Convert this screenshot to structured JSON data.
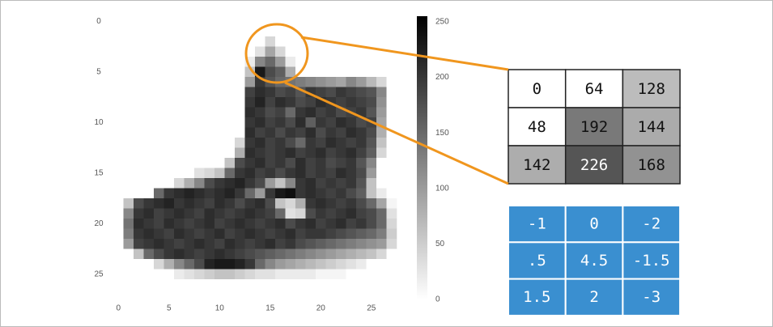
{
  "chart_data": {
    "type": "heatmap",
    "colormap": "gray_r",
    "xlim": [
      -0.5,
      27.5
    ],
    "ylim": [
      27.5,
      -0.5
    ],
    "zlim": [
      0,
      255
    ],
    "xticks": [
      0,
      5,
      10,
      15,
      20,
      25
    ],
    "yticks": [
      0,
      5,
      10,
      15,
      20,
      25
    ],
    "colorbar_ticks": [
      0,
      50,
      100,
      150,
      200,
      250
    ],
    "z": [
      [
        0,
        0,
        0,
        0,
        0,
        0,
        0,
        0,
        0,
        0,
        0,
        0,
        0,
        0,
        0,
        0,
        0,
        0,
        0,
        0,
        0,
        0,
        0,
        0,
        0,
        0,
        0,
        0
      ],
      [
        0,
        0,
        0,
        0,
        0,
        0,
        0,
        0,
        0,
        0,
        0,
        0,
        0,
        0,
        0,
        0,
        0,
        0,
        0,
        0,
        0,
        0,
        0,
        0,
        0,
        0,
        0,
        0
      ],
      [
        0,
        0,
        0,
        0,
        0,
        0,
        0,
        0,
        0,
        0,
        0,
        0,
        0,
        0,
        0,
        40,
        0,
        0,
        0,
        0,
        0,
        0,
        0,
        0,
        0,
        0,
        0,
        0
      ],
      [
        0,
        0,
        0,
        0,
        0,
        0,
        0,
        0,
        0,
        0,
        0,
        0,
        0,
        0,
        30,
        90,
        40,
        0,
        0,
        0,
        0,
        0,
        0,
        0,
        0,
        0,
        0,
        0
      ],
      [
        0,
        0,
        0,
        0,
        0,
        0,
        0,
        0,
        0,
        0,
        0,
        0,
        0,
        20,
        120,
        150,
        100,
        20,
        0,
        0,
        0,
        0,
        0,
        0,
        0,
        0,
        0,
        0
      ],
      [
        0,
        0,
        0,
        0,
        0,
        0,
        0,
        0,
        0,
        0,
        0,
        0,
        0,
        60,
        230,
        180,
        160,
        80,
        0,
        0,
        0,
        0,
        0,
        0,
        0,
        0,
        0,
        0
      ],
      [
        0,
        0,
        0,
        0,
        0,
        0,
        0,
        0,
        0,
        0,
        0,
        0,
        0,
        100,
        200,
        170,
        150,
        140,
        130,
        120,
        110,
        100,
        90,
        120,
        100,
        70,
        40,
        0
      ],
      [
        0,
        0,
        0,
        0,
        0,
        0,
        0,
        0,
        0,
        0,
        0,
        0,
        0,
        190,
        210,
        200,
        180,
        190,
        170,
        200,
        190,
        180,
        200,
        190,
        180,
        170,
        120,
        0
      ],
      [
        0,
        0,
        0,
        0,
        0,
        0,
        0,
        0,
        0,
        0,
        0,
        0,
        0,
        200,
        220,
        190,
        210,
        200,
        180,
        190,
        210,
        200,
        190,
        200,
        190,
        180,
        110,
        0
      ],
      [
        0,
        0,
        0,
        0,
        0,
        0,
        0,
        0,
        0,
        0,
        0,
        0,
        0,
        210,
        200,
        180,
        190,
        150,
        200,
        210,
        190,
        200,
        180,
        190,
        200,
        170,
        100,
        0
      ],
      [
        0,
        0,
        0,
        0,
        0,
        0,
        0,
        0,
        0,
        0,
        0,
        0,
        0,
        200,
        210,
        190,
        200,
        180,
        210,
        160,
        200,
        190,
        210,
        200,
        180,
        190,
        90,
        0
      ],
      [
        0,
        0,
        0,
        0,
        0,
        0,
        0,
        0,
        0,
        0,
        0,
        0,
        0,
        210,
        190,
        200,
        180,
        200,
        190,
        210,
        180,
        200,
        190,
        210,
        200,
        180,
        80,
        0
      ],
      [
        0,
        0,
        0,
        0,
        0,
        0,
        0,
        0,
        0,
        0,
        0,
        0,
        40,
        200,
        210,
        190,
        200,
        180,
        150,
        200,
        190,
        210,
        200,
        190,
        200,
        170,
        60,
        0
      ],
      [
        0,
        0,
        0,
        0,
        0,
        0,
        0,
        0,
        0,
        0,
        0,
        0,
        80,
        210,
        200,
        190,
        200,
        210,
        190,
        200,
        210,
        190,
        200,
        210,
        190,
        160,
        40,
        0
      ],
      [
        0,
        0,
        0,
        0,
        0,
        0,
        0,
        0,
        0,
        0,
        0,
        60,
        180,
        200,
        210,
        190,
        200,
        180,
        210,
        190,
        200,
        180,
        190,
        200,
        170,
        120,
        0,
        0
      ],
      [
        0,
        0,
        0,
        0,
        0,
        0,
        0,
        0,
        30,
        40,
        60,
        150,
        200,
        210,
        190,
        200,
        180,
        200,
        210,
        190,
        200,
        190,
        210,
        200,
        180,
        100,
        0,
        0
      ],
      [
        0,
        0,
        0,
        0,
        0,
        0,
        40,
        80,
        120,
        180,
        200,
        210,
        220,
        200,
        180,
        100,
        60,
        120,
        200,
        210,
        190,
        200,
        190,
        200,
        170,
        60,
        0,
        0
      ],
      [
        0,
        0,
        0,
        0,
        150,
        200,
        210,
        220,
        210,
        200,
        210,
        220,
        200,
        150,
        100,
        200,
        230,
        240,
        200,
        210,
        200,
        190,
        200,
        180,
        160,
        60,
        20,
        0
      ],
      [
        0,
        60,
        180,
        200,
        210,
        220,
        200,
        210,
        200,
        190,
        210,
        200,
        180,
        200,
        210,
        180,
        60,
        40,
        80,
        200,
        210,
        200,
        190,
        200,
        180,
        150,
        90,
        10
      ],
      [
        0,
        120,
        200,
        210,
        190,
        200,
        210,
        200,
        190,
        210,
        200,
        190,
        200,
        210,
        200,
        190,
        150,
        30,
        40,
        180,
        200,
        190,
        200,
        210,
        190,
        180,
        150,
        30
      ],
      [
        0,
        140,
        210,
        200,
        190,
        210,
        200,
        190,
        200,
        210,
        190,
        200,
        210,
        200,
        190,
        200,
        210,
        180,
        200,
        210,
        190,
        200,
        210,
        190,
        200,
        180,
        150,
        40
      ],
      [
        0,
        130,
        200,
        210,
        200,
        190,
        210,
        200,
        190,
        200,
        210,
        190,
        200,
        210,
        200,
        190,
        200,
        210,
        190,
        200,
        200,
        190,
        180,
        170,
        160,
        150,
        130,
        50
      ],
      [
        0,
        100,
        190,
        200,
        210,
        200,
        190,
        200,
        210,
        200,
        190,
        210,
        200,
        190,
        200,
        210,
        190,
        200,
        180,
        170,
        160,
        150,
        140,
        130,
        120,
        110,
        100,
        40
      ],
      [
        0,
        0,
        60,
        150,
        180,
        200,
        210,
        200,
        190,
        200,
        210,
        200,
        190,
        180,
        170,
        160,
        150,
        140,
        130,
        120,
        110,
        100,
        90,
        80,
        70,
        60,
        40,
        0
      ],
      [
        0,
        0,
        0,
        0,
        40,
        80,
        120,
        150,
        180,
        220,
        230,
        230,
        220,
        200,
        150,
        120,
        100,
        90,
        80,
        70,
        60,
        50,
        40,
        30,
        20,
        0,
        0,
        0
      ],
      [
        0,
        0,
        0,
        0,
        0,
        0,
        20,
        30,
        40,
        50,
        60,
        60,
        50,
        40,
        30,
        30,
        20,
        20,
        20,
        20,
        10,
        10,
        10,
        0,
        0,
        0,
        0,
        0
      ],
      [
        0,
        0,
        0,
        0,
        0,
        0,
        0,
        0,
        0,
        0,
        0,
        0,
        0,
        0,
        0,
        0,
        0,
        0,
        0,
        0,
        0,
        0,
        0,
        0,
        0,
        0,
        0,
        0
      ],
      [
        0,
        0,
        0,
        0,
        0,
        0,
        0,
        0,
        0,
        0,
        0,
        0,
        0,
        0,
        0,
        0,
        0,
        0,
        0,
        0,
        0,
        0,
        0,
        0,
        0,
        0,
        0,
        0
      ]
    ]
  },
  "pixel_patch": {
    "values": [
      0,
      64,
      128,
      48,
      192,
      144,
      142,
      226,
      168
    ]
  },
  "filter": {
    "color": "#3a8fd0",
    "values": [
      -1,
      0,
      -2,
      0.5,
      4.5,
      -1.5,
      1.5,
      2,
      -3
    ],
    "value_labels": [
      "-1",
      "0",
      "-2",
      ".5",
      "4.5",
      "-1.5",
      "1.5",
      "2",
      "-3"
    ]
  }
}
